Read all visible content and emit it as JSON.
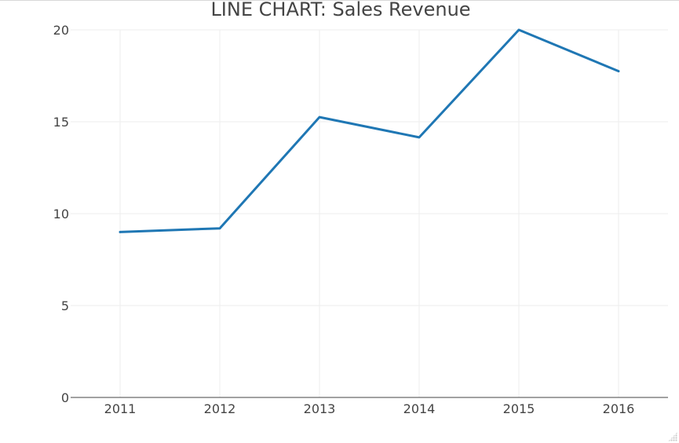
{
  "chart_data": {
    "type": "line",
    "title": "LINE CHART: Sales Revenue",
    "xlabel": "",
    "ylabel": "",
    "x": [
      "2011",
      "2012",
      "2013",
      "2014",
      "2015",
      "2016"
    ],
    "series": [
      {
        "values": [
          9.0,
          9.2,
          15.25,
          14.15,
          20.0,
          17.75
        ],
        "color": "#1f77b4"
      }
    ],
    "ylim": [
      0,
      20
    ],
    "yticks": [
      "0",
      "5",
      "10",
      "15",
      "20"
    ],
    "grid": true,
    "legend": "none"
  }
}
